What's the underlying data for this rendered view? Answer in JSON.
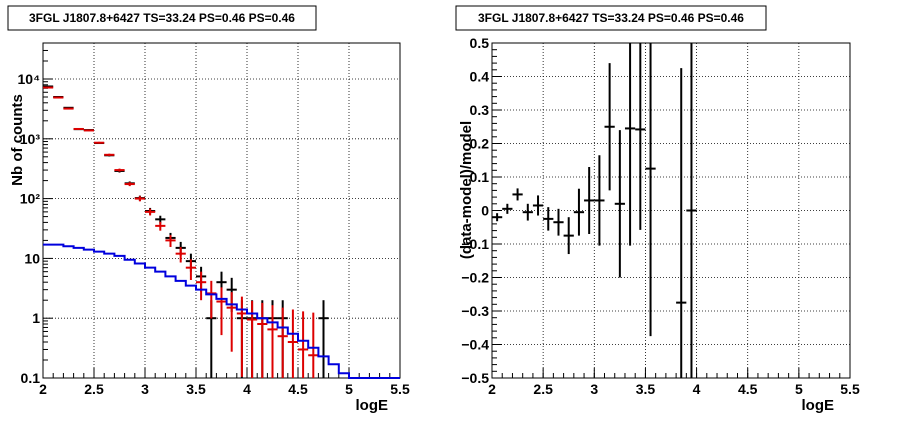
{
  "chart_data": [
    {
      "type": "line",
      "title": "3FGL J1807.8+6427 TS=33.24 PS=0.46 PS=0.46",
      "xlabel": "logE",
      "ylabel": "Nb of counts",
      "xlim": [
        2,
        5.5
      ],
      "ylim": [
        0.1,
        40000
      ],
      "yscale": "log",
      "grid": true,
      "x_ticks": [
        "2",
        "2.5",
        "3",
        "3.5",
        "4",
        "4.5",
        "5",
        "5.5"
      ],
      "y_ticks": [
        "0.1",
        "1",
        "10",
        "10²",
        "10³",
        "10⁴"
      ],
      "bin_edges": [
        2.0,
        2.1,
        2.2,
        2.3,
        2.4,
        2.5,
        2.6,
        2.7,
        2.8,
        2.9,
        3.0,
        3.1,
        3.2,
        3.3,
        3.4,
        3.5,
        3.6,
        3.7,
        3.8,
        3.9,
        4.0,
        4.1,
        4.2,
        4.3,
        4.4,
        4.5,
        4.6,
        4.7,
        4.8,
        4.9,
        5.0,
        5.1,
        5.2,
        5.3,
        5.4,
        5.5
      ],
      "series": [
        {
          "color": "#000000",
          "kind": "data-points",
          "points": [
            {
              "x": 2.05,
              "y": 7500
            },
            {
              "x": 2.15,
              "y": 5000
            },
            {
              "x": 2.25,
              "y": 3300
            },
            {
              "x": 2.35,
              "y": 1450
            },
            {
              "x": 2.45,
              "y": 1400
            },
            {
              "x": 2.55,
              "y": 850
            },
            {
              "x": 2.65,
              "y": 530
            },
            {
              "x": 2.75,
              "y": 290
            },
            {
              "x": 2.85,
              "y": 180
            },
            {
              "x": 2.95,
              "y": 102
            },
            {
              "x": 3.05,
              "y": 62
            },
            {
              "x": 3.15,
              "y": 45
            },
            {
              "x": 3.25,
              "y": 22
            },
            {
              "x": 3.35,
              "y": 15
            },
            {
              "x": 3.45,
              "y": 9
            },
            {
              "x": 3.55,
              "y": 5
            },
            {
              "x": 3.65,
              "y": 1
            },
            {
              "x": 3.75,
              "y": 4
            },
            {
              "x": 3.85,
              "y": 3
            },
            {
              "x": 3.95,
              "y": 1
            },
            {
              "x": 4.05,
              "y": 1
            },
            {
              "x": 4.15,
              "y": 1
            },
            {
              "x": 4.25,
              "y": 1
            },
            {
              "x": 4.35,
              "y": 1
            },
            {
              "x": 4.75,
              "y": 1
            }
          ]
        },
        {
          "color": "#dd0000",
          "kind": "model-points",
          "points": [
            {
              "x": 2.05,
              "y": 7200
            },
            {
              "x": 2.15,
              "y": 4900
            },
            {
              "x": 2.25,
              "y": 3200
            },
            {
              "x": 2.35,
              "y": 1460
            },
            {
              "x": 2.45,
              "y": 1380
            },
            {
              "x": 2.55,
              "y": 860
            },
            {
              "x": 2.65,
              "y": 540
            },
            {
              "x": 2.75,
              "y": 300
            },
            {
              "x": 2.85,
              "y": 175
            },
            {
              "x": 2.95,
              "y": 100
            },
            {
              "x": 3.05,
              "y": 60
            },
            {
              "x": 3.15,
              "y": 35
            },
            {
              "x": 3.25,
              "y": 20
            },
            {
              "x": 3.35,
              "y": 12
            },
            {
              "x": 3.45,
              "y": 7
            },
            {
              "x": 3.55,
              "y": 4
            },
            {
              "x": 3.65,
              "y": 2.6
            },
            {
              "x": 3.75,
              "y": 1.9
            },
            {
              "x": 3.85,
              "y": 1.5
            },
            {
              "x": 3.95,
              "y": 1.2
            },
            {
              "x": 4.05,
              "y": 0.95
            },
            {
              "x": 4.15,
              "y": 0.8
            },
            {
              "x": 4.25,
              "y": 0.65
            },
            {
              "x": 4.35,
              "y": 0.5
            },
            {
              "x": 4.45,
              "y": 0.4
            },
            {
              "x": 4.55,
              "y": 0.3
            },
            {
              "x": 4.65,
              "y": 0.24
            }
          ]
        },
        {
          "color": "#0000dd",
          "kind": "step",
          "values": [
            17,
            17,
            16,
            15,
            14,
            13,
            12,
            11,
            9.5,
            8.2,
            7,
            6,
            5,
            4.2,
            3.5,
            3.0,
            2.5,
            2.1,
            1.7,
            1.4,
            1.2,
            1.0,
            0.85,
            0.7,
            0.55,
            0.42,
            0.32,
            0.23,
            0.17,
            0.12,
            0.1,
            0.1,
            0.1,
            0.1,
            0.1
          ]
        }
      ]
    },
    {
      "type": "scatter",
      "title": "3FGL J1807.8+6427 TS=33.24 PS=0.46 PS=0.46",
      "xlabel": "logE",
      "ylabel": "(data-model)/model",
      "xlim": [
        2,
        5.5
      ],
      "ylim": [
        -0.5,
        0.5
      ],
      "grid": true,
      "x_ticks": [
        "2",
        "2.5",
        "3",
        "3.5",
        "4",
        "4.5",
        "5",
        "5.5"
      ],
      "y_ticks": [
        "−0.5",
        "−0.4",
        "−0.3",
        "−0.2",
        "−0.1",
        "0",
        "0.1",
        "0.2",
        "0.3",
        "0.4",
        "0.5"
      ],
      "series": [
        {
          "color": "#000000",
          "points": [
            {
              "x": 2.05,
              "y": -0.02,
              "err": 0.012
            },
            {
              "x": 2.15,
              "y": 0.005,
              "err": 0.015
            },
            {
              "x": 2.25,
              "y": 0.048,
              "err": 0.018
            },
            {
              "x": 2.35,
              "y": -0.005,
              "err": 0.025
            },
            {
              "x": 2.45,
              "y": 0.015,
              "err": 0.03
            },
            {
              "x": 2.55,
              "y": -0.025,
              "err": 0.035
            },
            {
              "x": 2.65,
              "y": -0.035,
              "err": 0.04
            },
            {
              "x": 2.75,
              "y": -0.075,
              "err": 0.055
            },
            {
              "x": 2.85,
              "y": -0.005,
              "err": 0.07
            },
            {
              "x": 2.95,
              "y": 0.03,
              "err": 0.1
            },
            {
              "x": 3.05,
              "y": 0.03,
              "err": 0.135
            },
            {
              "x": 3.15,
              "y": 0.25,
              "err": 0.19
            },
            {
              "x": 3.25,
              "y": 0.02,
              "err": 0.22
            },
            {
              "x": 3.35,
              "y": 0.245,
              "err": 0.35
            },
            {
              "x": 3.45,
              "y": 0.242,
              "err": 0.3
            },
            {
              "x": 3.55,
              "y": 0.125,
              "err": 0.5
            },
            {
              "x": 3.85,
              "y": -0.275,
              "err": 0.7
            },
            {
              "x": 3.95,
              "y": 0.0,
              "err": 0.9
            }
          ]
        }
      ]
    }
  ]
}
